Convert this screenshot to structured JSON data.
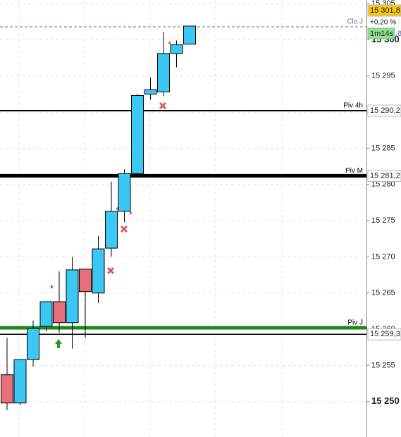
{
  "chart_data": {
    "type": "candlestick",
    "ylim": [
      15245.1,
      15305.5
    ],
    "yticks": [
      {
        "value": 15305,
        "label": "15 305"
      },
      {
        "value": 15300,
        "label": "15 300"
      },
      {
        "value": 15295,
        "label": "15 295"
      },
      {
        "value": 15290,
        "label": "15 290"
      },
      {
        "value": 15285,
        "label": "15 285"
      },
      {
        "value": 15280,
        "label": "15 280"
      },
      {
        "value": 15275,
        "label": "15 275"
      },
      {
        "value": 15270,
        "label": "15 270"
      },
      {
        "value": 15265,
        "label": "15 265"
      },
      {
        "value": 15260,
        "label": "15 260"
      },
      {
        "value": 15255,
        "label": "15 255"
      },
      {
        "value": 15250,
        "label": "15 250"
      }
    ],
    "grid": true,
    "up_color": "#3cc8f4",
    "down_color": "#e8707a",
    "open": [
      15253.7,
      15249.8,
      15255.8,
      15260.4,
      15263.8,
      15260.9,
      15268.3,
      15265.0,
      15271.2,
      15276.3,
      15281.5,
      15292.5,
      15292.8,
      15298.1,
      15299.4
    ],
    "high": [
      15258.8,
      15255.8,
      15261.2,
      15263.8,
      15268.0,
      15270.0,
      15268.3,
      15272.9,
      15280.4,
      15282.1,
      15292.5,
      15294.8,
      15301.1,
      15299.9,
      15301.9
    ],
    "low": [
      15248.8,
      15249.5,
      15254.8,
      15259.7,
      15259.5,
      15257.3,
      15258.8,
      15263.6,
      15270.0,
      15274.8,
      15281.0,
      15291.7,
      15292.2,
      15296.2,
      15299.4
    ],
    "close": [
      15249.8,
      15255.8,
      15260.1,
      15263.8,
      15260.9,
      15268.2,
      15265.2,
      15271.1,
      15276.3,
      15281.5,
      15292.3,
      15293.1,
      15298.1,
      15299.3,
      15301.9
    ],
    "levels": [
      {
        "name": "Clo J",
        "value": 15301.8,
        "label": "15 301,8",
        "color": "#5a6aa8",
        "width": 1,
        "dashed": true,
        "badge": "#f5c518"
      },
      {
        "name": "Piv 4h",
        "value": 15290.2,
        "label": "15 290,2",
        "color": "#000000",
        "width": 2,
        "dashed": false,
        "badge": "#ffffff"
      },
      {
        "name": "Piv M",
        "value": 15281.2,
        "label": "15 281,2",
        "color": "#000000",
        "width": 5,
        "dashed": false,
        "badge": "#ffffff"
      },
      {
        "name": "Piv J",
        "value": 15260.2,
        "color": "#1a8a1a",
        "width": 5,
        "dashed": false
      },
      {
        "value": 15259.3,
        "label": "15 259,3",
        "color": "#000000",
        "width": 1.5,
        "dashed": false,
        "badge": "#ffffff"
      }
    ],
    "change": "+0,20 %",
    "countdown": "1m14s",
    "countdown_suffix": ",8"
  }
}
